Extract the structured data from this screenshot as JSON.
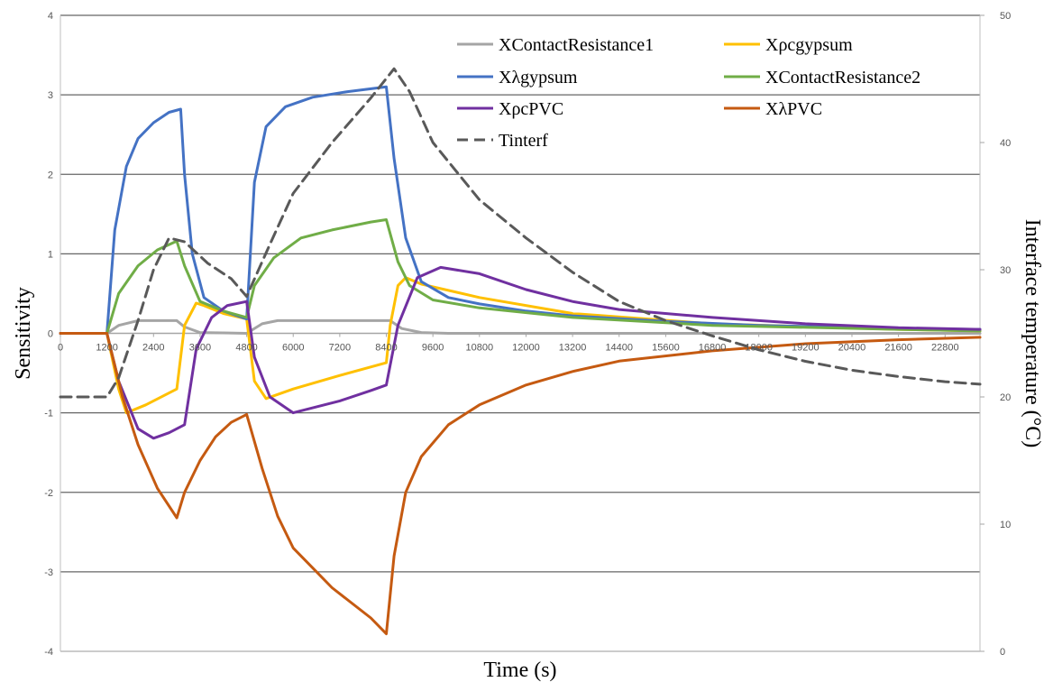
{
  "chart_data": {
    "type": "line",
    "xlabel": "Time (s)",
    "ylabel": "Sensitivity",
    "y2label": "Interface temperature (°C)",
    "xlim": [
      0,
      23700
    ],
    "ylim": [
      -4,
      4
    ],
    "y2lim": [
      0,
      50
    ],
    "x_ticks": [
      "0",
      "1200",
      "2400",
      "3600",
      "4800",
      "6000",
      "7200",
      "8400",
      "9600",
      "10800",
      "12000",
      "13200",
      "14400",
      "15600",
      "16800",
      "18000",
      "19200",
      "20400",
      "21600",
      "22800"
    ],
    "y_ticks": [
      "-4",
      "-3",
      "-2",
      "-1",
      "0",
      "1",
      "2",
      "3",
      "4"
    ],
    "y2_ticks": [
      "0",
      "10",
      "20",
      "30",
      "40",
      "50"
    ],
    "grid": true,
    "legend_position": "top-right",
    "series": [
      {
        "name": "XContactResistance1",
        "color": "#a5a5a5",
        "axis": "left",
        "dash": false,
        "x": [
          0,
          1200,
          1500,
          2000,
          3000,
          3200,
          3600,
          4800,
          5200,
          5600,
          6500,
          8000,
          8500,
          8800,
          9300,
          10000,
          23700
        ],
        "y": [
          0,
          0,
          0.1,
          0.16,
          0.16,
          0.08,
          0.01,
          0,
          0.12,
          0.16,
          0.16,
          0.16,
          0.16,
          0.06,
          0.01,
          0,
          0
        ]
      },
      {
        "name": "Xρcgypsum",
        "color": "#ffc000",
        "axis": "left",
        "dash": false,
        "x": [
          0,
          1200,
          1500,
          1700,
          2200,
          3000,
          3200,
          3500,
          3700,
          4200,
          4800,
          5000,
          5300,
          6000,
          7200,
          8400,
          8500,
          8700,
          8900,
          9300,
          10800,
          13200,
          16800,
          21600,
          23700
        ],
        "y": [
          0,
          0,
          -0.7,
          -1.0,
          -0.9,
          -0.7,
          0.1,
          0.38,
          0.35,
          0.25,
          0.18,
          -0.6,
          -0.82,
          -0.7,
          -0.53,
          -0.37,
          0.1,
          0.6,
          0.7,
          0.62,
          0.45,
          0.25,
          0.12,
          0.05,
          0.03
        ]
      },
      {
        "name": "Xλgypsum",
        "color": "#4472c4",
        "axis": "left",
        "dash": false,
        "x": [
          0,
          1200,
          1400,
          1700,
          2000,
          2400,
          2800,
          3100,
          3200,
          3400,
          3700,
          4200,
          4800,
          5000,
          5300,
          5800,
          6500,
          7400,
          8400,
          8600,
          8900,
          9300,
          10000,
          10800,
          12000,
          13200,
          15600,
          18000,
          21600,
          23700
        ],
        "y": [
          0,
          0,
          1.3,
          2.1,
          2.45,
          2.65,
          2.78,
          2.82,
          2.0,
          1.0,
          0.45,
          0.28,
          0.18,
          1.9,
          2.6,
          2.85,
          2.97,
          3.04,
          3.1,
          2.2,
          1.2,
          0.65,
          0.45,
          0.37,
          0.28,
          0.22,
          0.15,
          0.1,
          0.06,
          0.05
        ]
      },
      {
        "name": "XContactResistance2",
        "color": "#70ad47",
        "axis": "left",
        "dash": false,
        "x": [
          0,
          1200,
          1500,
          2000,
          2500,
          3000,
          3200,
          3600,
          4200,
          4800,
          5000,
          5500,
          6200,
          7000,
          8000,
          8400,
          8700,
          9000,
          9600,
          10800,
          13200,
          16800,
          21600,
          23700
        ],
        "y": [
          0,
          0,
          0.5,
          0.85,
          1.05,
          1.16,
          0.85,
          0.4,
          0.28,
          0.2,
          0.6,
          0.95,
          1.2,
          1.3,
          1.4,
          1.43,
          0.9,
          0.6,
          0.42,
          0.32,
          0.2,
          0.1,
          0.05,
          0.03
        ]
      },
      {
        "name": "XρcPVC",
        "color": "#7030a0",
        "axis": "left",
        "dash": false,
        "x": [
          0,
          1200,
          1500,
          2000,
          2400,
          2800,
          3200,
          3500,
          3900,
          4300,
          4800,
          5000,
          5400,
          6000,
          7200,
          8000,
          8400,
          8700,
          9200,
          9800,
          10800,
          12000,
          13200,
          14400,
          16800,
          19200,
          21600,
          23700
        ],
        "y": [
          0,
          0,
          -0.6,
          -1.2,
          -1.32,
          -1.25,
          -1.15,
          -0.2,
          0.2,
          0.35,
          0.4,
          -0.3,
          -0.8,
          -1.0,
          -0.85,
          -0.72,
          -0.65,
          0.1,
          0.7,
          0.83,
          0.75,
          0.55,
          0.4,
          0.3,
          0.2,
          0.12,
          0.07,
          0.05
        ]
      },
      {
        "name": "XλPVC",
        "color": "#c55a11",
        "axis": "left",
        "dash": false,
        "x": [
          0,
          1200,
          1600,
          2000,
          2500,
          3000,
          3200,
          3600,
          4000,
          4400,
          4800,
          5200,
          5600,
          6000,
          7000,
          8000,
          8400,
          8600,
          8900,
          9300,
          10000,
          10800,
          12000,
          13200,
          14400,
          16800,
          19200,
          21600,
          23700
        ],
        "y": [
          0,
          0,
          -0.8,
          -1.4,
          -1.95,
          -2.32,
          -2.0,
          -1.6,
          -1.3,
          -1.12,
          -1.02,
          -1.7,
          -2.3,
          -2.7,
          -3.2,
          -3.58,
          -3.78,
          -2.8,
          -2.0,
          -1.55,
          -1.15,
          -0.9,
          -0.65,
          -0.48,
          -0.35,
          -0.22,
          -0.13,
          -0.08,
          -0.05
        ]
      },
      {
        "name": "Tinterf",
        "color": "#595959",
        "axis": "right",
        "dash": true,
        "x": [
          0,
          1200,
          1500,
          2000,
          2400,
          2800,
          3200,
          3800,
          4400,
          4800,
          5400,
          6000,
          7000,
          8000,
          8600,
          9000,
          9600,
          10800,
          12000,
          13200,
          14400,
          15600,
          16800,
          18000,
          19200,
          20400,
          21600,
          22800,
          23700
        ],
        "y": [
          20,
          20,
          21.5,
          26,
          30,
          32.5,
          32.2,
          30.5,
          29.3,
          27.9,
          32,
          36,
          40,
          43.5,
          45.8,
          44,
          40,
          35.5,
          32.5,
          29.8,
          27.5,
          26,
          24.8,
          23.7,
          22.8,
          22.1,
          21.6,
          21.2,
          21
        ]
      }
    ]
  }
}
